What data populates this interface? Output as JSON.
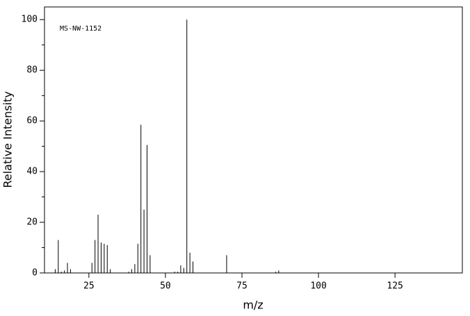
{
  "chart_data": {
    "type": "stick",
    "annotation": "MS-NW-1152",
    "x_label": "m/z",
    "y_label": "Relative Intensity",
    "x": [
      14,
      15,
      16,
      17,
      18,
      19,
      26,
      27,
      28,
      29,
      30,
      31,
      32,
      38,
      39,
      40,
      41,
      42,
      43,
      44,
      45,
      53,
      54,
      55,
      56,
      57,
      58,
      59,
      70,
      86,
      87
    ],
    "values": [
      1.5,
      13,
      0.5,
      1,
      4,
      1.5,
      4,
      13,
      23,
      12,
      11.5,
      11,
      1.5,
      0.5,
      1.5,
      3.5,
      11.5,
      58.5,
      25,
      50.5,
      7,
      0.5,
      0.5,
      3,
      2,
      100,
      8,
      4.5,
      7,
      0.5,
      1
    ],
    "color": "#000000",
    "xlim": [
      10.5,
      147
    ],
    "ylim": [
      0,
      105
    ],
    "xticks": [
      25,
      50,
      75,
      100,
      125
    ],
    "yticks": [
      0,
      20,
      40,
      60,
      80,
      100
    ],
    "yminor_ticks": [
      10,
      30,
      50,
      70,
      90
    ]
  }
}
